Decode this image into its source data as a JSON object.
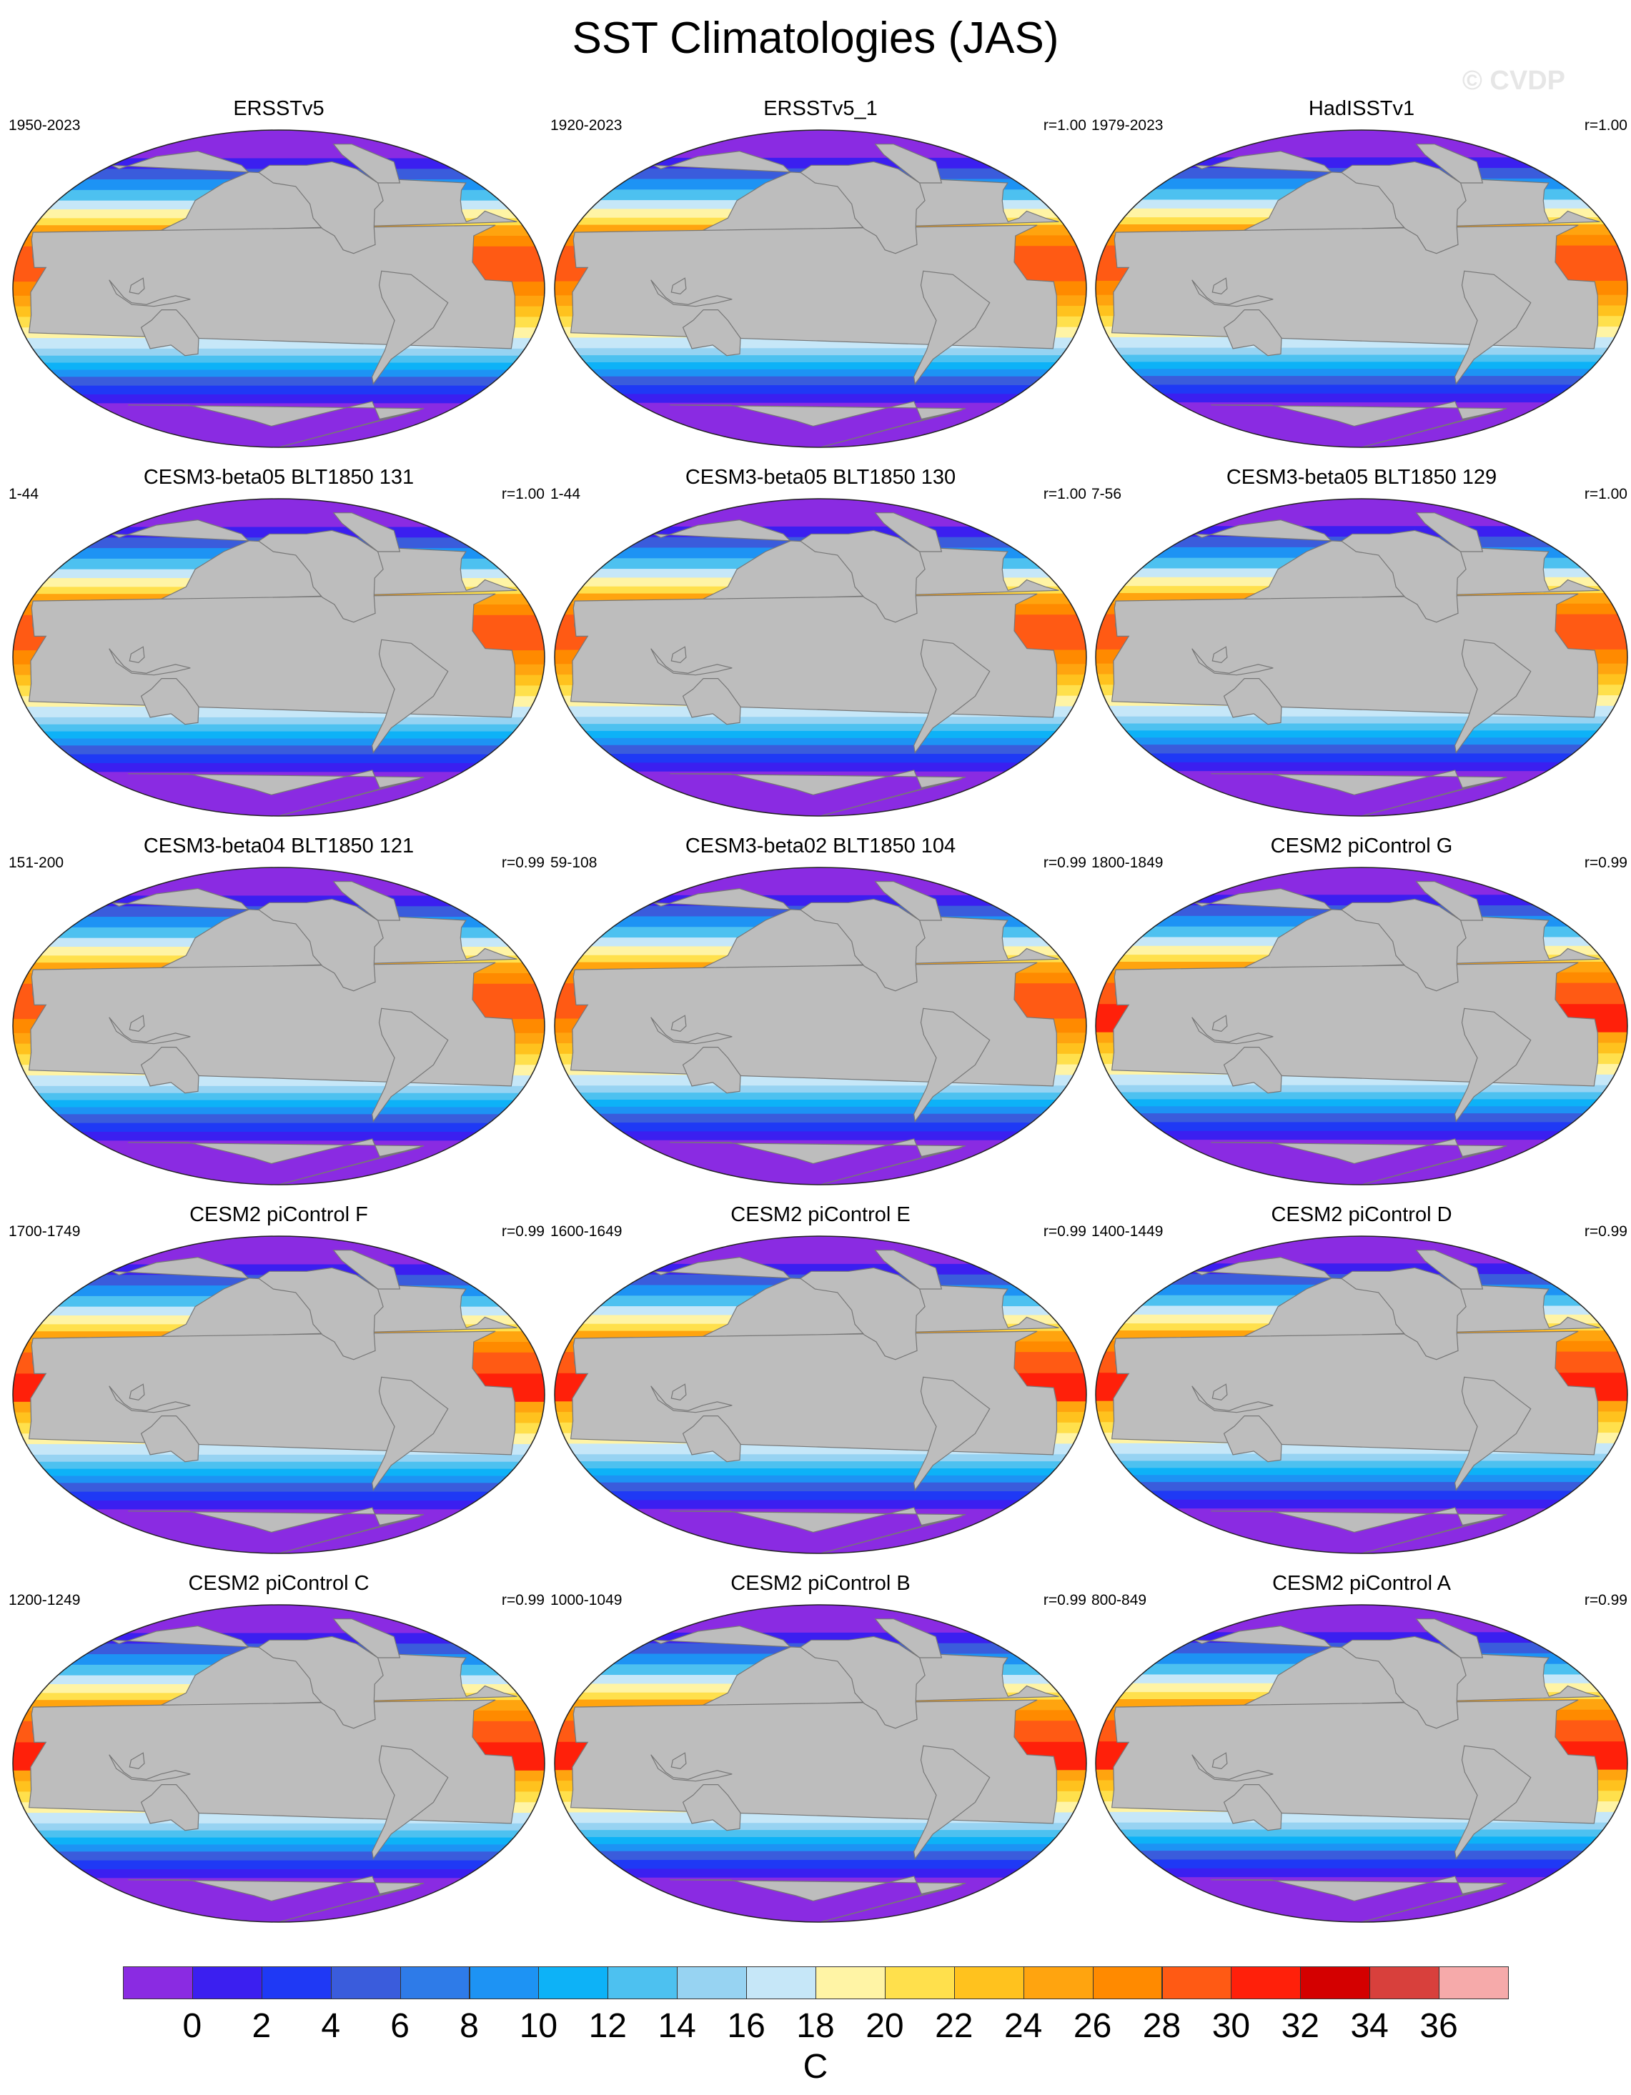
{
  "title": "SST Climatologies (JAS)",
  "watermark": "© CVDP",
  "colors": {
    "land": "#bdbdbd",
    "levels": [
      "#8a2be2",
      "#3b1ff0",
      "#1f39f5",
      "#3a5cdc",
      "#2e7be8",
      "#1d93f4",
      "#0db2f7",
      "#4dc1f0",
      "#97d3f2",
      "#c6e7f8",
      "#fff4a5",
      "#ffe04c",
      "#ffc21e",
      "#ffa40f",
      "#ff8a00",
      "#ff5a14",
      "#ff200a",
      "#d40000",
      "#d8403c",
      "#f6aaaa"
    ]
  },
  "chart_data": {
    "type": "heatmap",
    "description_type": "global SST map panels (Robinson-like projection)",
    "panels": [
      {
        "title": "ERSSTv5",
        "period": "1950-2023",
        "corr": ""
      },
      {
        "title": "ERSSTv5_1",
        "period": "1920-2023",
        "corr": "r=1.00"
      },
      {
        "title": "HadISSTv1",
        "period": "1979-2023",
        "corr": "r=1.00"
      },
      {
        "title": "CESM3-beta05 BLT1850 131",
        "period": "1-44",
        "corr": "r=1.00"
      },
      {
        "title": "CESM3-beta05 BLT1850 130",
        "period": "1-44",
        "corr": "r=1.00"
      },
      {
        "title": "CESM3-beta05 BLT1850 129",
        "period": "7-56",
        "corr": "r=1.00"
      },
      {
        "title": "CESM3-beta04 BLT1850 121",
        "period": "151-200",
        "corr": "r=0.99"
      },
      {
        "title": "CESM3-beta02 BLT1850 104",
        "period": "59-108",
        "corr": "r=0.99"
      },
      {
        "title": "CESM2 piControl G",
        "period": "1800-1849",
        "corr": "r=0.99"
      },
      {
        "title": "CESM2 piControl F",
        "period": "1700-1749",
        "corr": "r=0.99"
      },
      {
        "title": "CESM2 piControl E",
        "period": "1600-1649",
        "corr": "r=0.99"
      },
      {
        "title": "CESM2 piControl D",
        "period": "1400-1449",
        "corr": "r=0.99"
      },
      {
        "title": "CESM2 piControl C",
        "period": "1200-1249",
        "corr": "r=0.99"
      },
      {
        "title": "CESM2 piControl B",
        "period": "1000-1049",
        "corr": "r=0.99"
      },
      {
        "title": "CESM2 piControl A",
        "period": "800-849",
        "corr": "r=0.99"
      }
    ],
    "colorbar": {
      "levels": [
        0,
        2,
        4,
        6,
        8,
        10,
        12,
        14,
        16,
        18,
        20,
        22,
        24,
        26,
        28,
        30,
        32,
        34,
        36
      ],
      "labels": [
        "0",
        "2",
        "4",
        "6",
        "8",
        "10",
        "12",
        "14",
        "16",
        "18",
        "20",
        "22",
        "24",
        "26",
        "28",
        "30",
        "32",
        "34",
        "36"
      ],
      "unit": "C"
    }
  }
}
